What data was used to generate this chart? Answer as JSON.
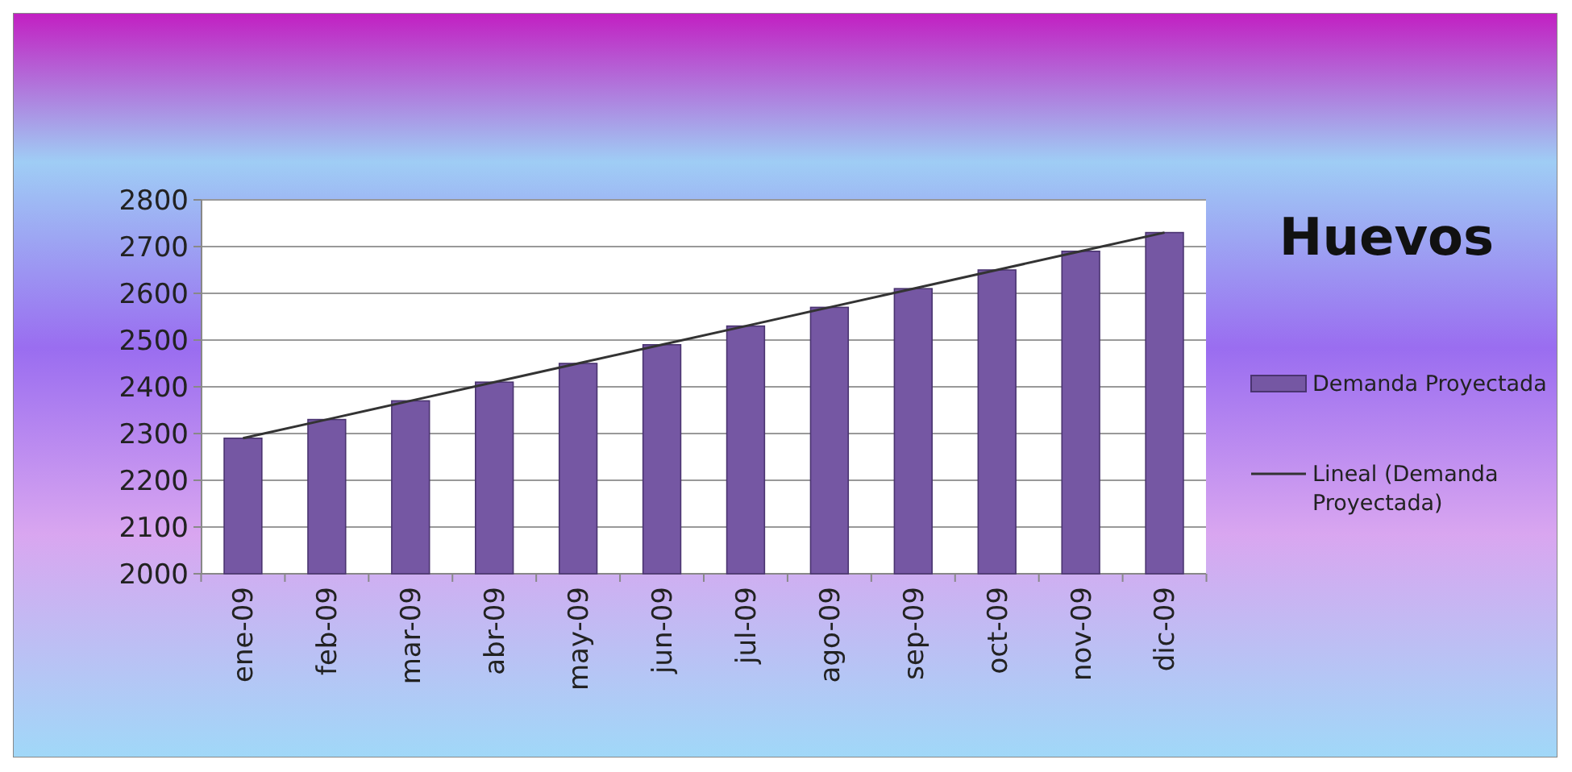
{
  "chart_data": {
    "type": "bar",
    "title": "Huevos",
    "categories": [
      "ene-09",
      "feb-09",
      "mar-09",
      "abr-09",
      "may-09",
      "jun-09",
      "jul-09",
      "ago-09",
      "sep-09",
      "oct-09",
      "nov-09",
      "dic-09"
    ],
    "series": [
      {
        "name": "Demanda Proyectada",
        "color": "#7557a3",
        "values": [
          2290,
          2330,
          2370,
          2410,
          2450,
          2490,
          2530,
          2570,
          2610,
          2650,
          2690,
          2730
        ]
      },
      {
        "name": "Lineal (Demanda Proyectada)",
        "type": "line",
        "color": "#333333",
        "values": [
          2290,
          2330,
          2370,
          2410,
          2450,
          2490,
          2530,
          2570,
          2610,
          2650,
          2690,
          2730
        ]
      }
    ],
    "ylim": [
      2000,
      2800
    ],
    "yticks": [
      2000,
      2100,
      2200,
      2300,
      2400,
      2500,
      2600,
      2700,
      2800
    ],
    "grid": "y",
    "legend": "right"
  }
}
